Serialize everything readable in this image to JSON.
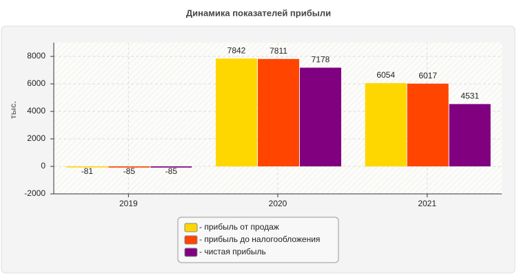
{
  "chart_data": {
    "type": "bar",
    "title": "Динамика показателей прибыли",
    "y_label": "тыс.",
    "categories": [
      "2019",
      "2020",
      "2021"
    ],
    "series": [
      {
        "name": "- прибыль от продаж",
        "color": "#ffd700",
        "values": [
          -81,
          7842,
          6054
        ]
      },
      {
        "name": "- прибыль до налогообложения",
        "color": "#ff4500",
        "values": [
          -85,
          7811,
          6017
        ]
      },
      {
        "name": "- чистая прибыль",
        "color": "#800080",
        "values": [
          -85,
          7178,
          4531
        ]
      }
    ],
    "ylim": [
      -2000,
      9000
    ],
    "yticks": [
      -2000,
      0,
      2000,
      4000,
      6000,
      8000
    ],
    "grid": true
  }
}
